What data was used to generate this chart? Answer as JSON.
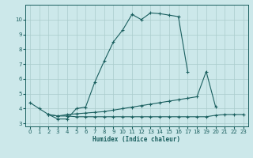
{
  "xlabel": "Humidex (Indice chaleur)",
  "bg_color": "#cce8ea",
  "grid_color": "#aacccc",
  "line_color": "#1a5f5f",
  "xlim": [
    -0.5,
    23.5
  ],
  "ylim": [
    2.8,
    11.0
  ],
  "yticks": [
    3,
    4,
    5,
    6,
    7,
    8,
    9,
    10
  ],
  "xticks": [
    0,
    1,
    2,
    3,
    4,
    5,
    6,
    7,
    8,
    9,
    10,
    11,
    12,
    13,
    14,
    15,
    16,
    17,
    18,
    19,
    20,
    21,
    22,
    23
  ],
  "series1_x": [
    0,
    1,
    2,
    3,
    4,
    5,
    6,
    7,
    8,
    9,
    10,
    11,
    12,
    13,
    14,
    15,
    16,
    17
  ],
  "series1_y": [
    4.4,
    4.0,
    3.6,
    3.3,
    3.3,
    4.0,
    4.1,
    5.8,
    7.2,
    8.5,
    9.3,
    10.35,
    10.0,
    10.45,
    10.4,
    10.3,
    10.2,
    6.5
  ],
  "series2_x": [
    2,
    3,
    4,
    5,
    6,
    7,
    8,
    9,
    10,
    11,
    12,
    13,
    14,
    15,
    16,
    17,
    18,
    19,
    20
  ],
  "series2_y": [
    3.6,
    3.5,
    3.6,
    3.65,
    3.7,
    3.75,
    3.8,
    3.9,
    4.0,
    4.1,
    4.2,
    4.3,
    4.4,
    4.5,
    4.6,
    4.7,
    4.8,
    6.5,
    4.15
  ],
  "series3_x": [
    2,
    3,
    4,
    5,
    6,
    7,
    8,
    9,
    10,
    11,
    12,
    13,
    14,
    15,
    16,
    17,
    18,
    19,
    20,
    21,
    22,
    23
  ],
  "series3_y": [
    3.6,
    3.5,
    3.5,
    3.45,
    3.45,
    3.45,
    3.45,
    3.45,
    3.45,
    3.45,
    3.45,
    3.45,
    3.45,
    3.45,
    3.45,
    3.45,
    3.45,
    3.45,
    3.55,
    3.6,
    3.6,
    3.6
  ]
}
